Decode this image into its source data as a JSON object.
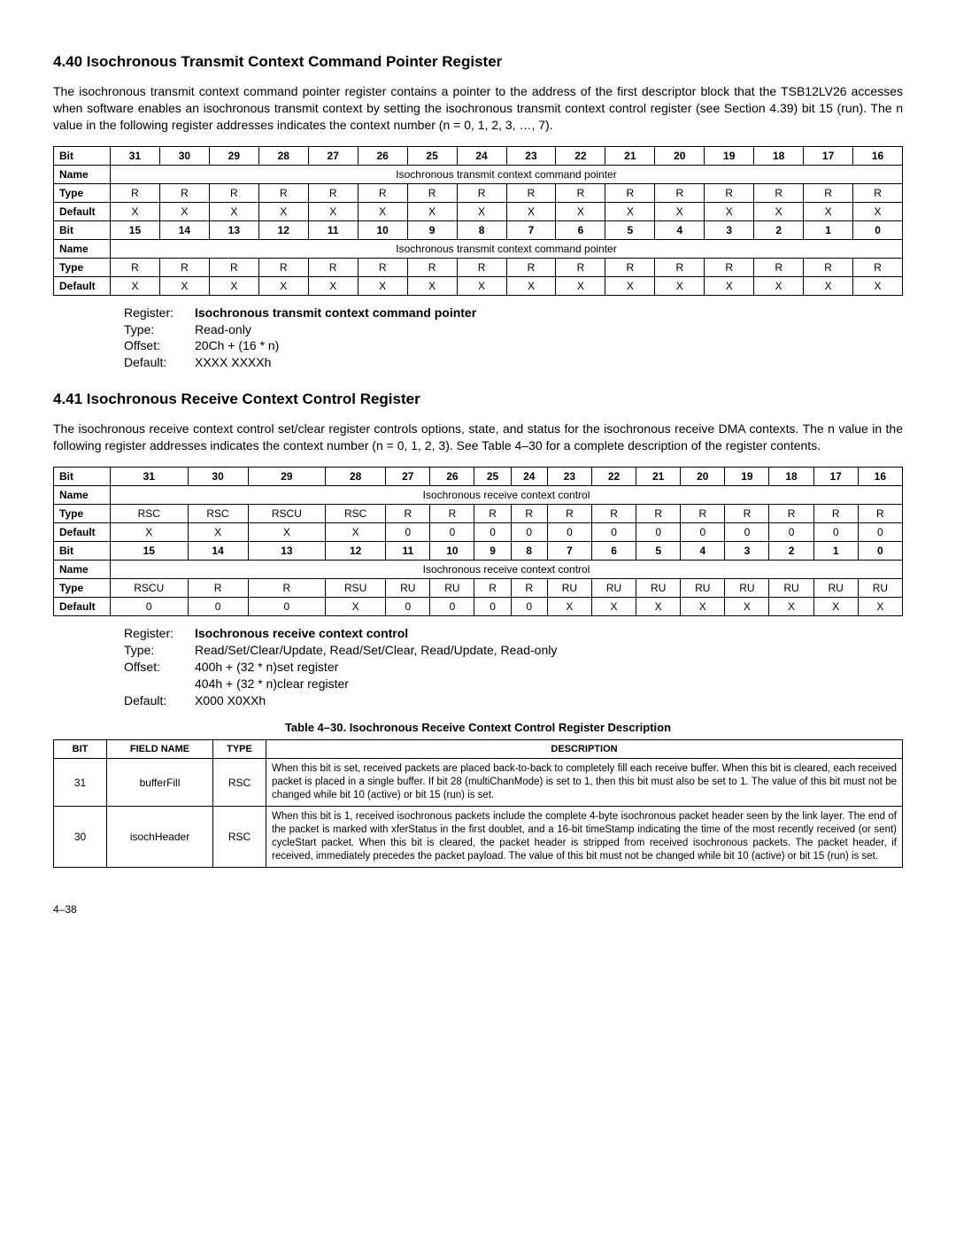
{
  "section440": {
    "heading": "4.40 Isochronous Transmit Context Command Pointer Register",
    "para": "The isochronous transmit context command pointer register contains a pointer to the address of the first descriptor block that the TSB12LV26 accesses when software enables an isochronous transmit context by setting the isochronous transmit context control register (see Section 4.39) bit 15 (run). The n value in the following register addresses indicates the context number (n = 0, 1, 2, 3, …, 7).",
    "table": {
      "rows": [
        {
          "hdr": "Bit",
          "bold": true,
          "cells": [
            "31",
            "30",
            "29",
            "28",
            "27",
            "26",
            "25",
            "24",
            "23",
            "22",
            "21",
            "20",
            "19",
            "18",
            "17",
            "16"
          ]
        },
        {
          "hdr": "Name",
          "bold": true,
          "span": "Isochronous transmit context command pointer"
        },
        {
          "hdr": "Type",
          "bold": true,
          "cells": [
            "R",
            "R",
            "R",
            "R",
            "R",
            "R",
            "R",
            "R",
            "R",
            "R",
            "R",
            "R",
            "R",
            "R",
            "R",
            "R"
          ]
        },
        {
          "hdr": "Default",
          "bold": true,
          "cells": [
            "X",
            "X",
            "X",
            "X",
            "X",
            "X",
            "X",
            "X",
            "X",
            "X",
            "X",
            "X",
            "X",
            "X",
            "X",
            "X"
          ]
        },
        {
          "hdr": "Bit",
          "bold": true,
          "cells": [
            "15",
            "14",
            "13",
            "12",
            "11",
            "10",
            "9",
            "8",
            "7",
            "6",
            "5",
            "4",
            "3",
            "2",
            "1",
            "0"
          ]
        },
        {
          "hdr": "Name",
          "bold": true,
          "span": "Isochronous transmit context command pointer"
        },
        {
          "hdr": "Type",
          "bold": true,
          "cells": [
            "R",
            "R",
            "R",
            "R",
            "R",
            "R",
            "R",
            "R",
            "R",
            "R",
            "R",
            "R",
            "R",
            "R",
            "R",
            "R"
          ]
        },
        {
          "hdr": "Default",
          "bold": true,
          "cells": [
            "X",
            "X",
            "X",
            "X",
            "X",
            "X",
            "X",
            "X",
            "X",
            "X",
            "X",
            "X",
            "X",
            "X",
            "X",
            "X"
          ]
        }
      ]
    },
    "reginfo": {
      "register": "Isochronous transmit context command pointer",
      "type": "Read-only",
      "offset": "20Ch + (16 * n)",
      "default": "XXXX XXXXh"
    }
  },
  "section441": {
    "heading": "4.41 Isochronous Receive Context Control Register",
    "para": "The isochronous receive context control set/clear register controls options, state, and status for the isochronous receive DMA contexts. The n value in the following register addresses indicates the context number (n = 0, 1, 2, 3). See Table 4–30 for a complete description of the register contents.",
    "table": {
      "rows": [
        {
          "hdr": "Bit",
          "bold": true,
          "cells": [
            "31",
            "30",
            "29",
            "28",
            "27",
            "26",
            "25",
            "24",
            "23",
            "22",
            "21",
            "20",
            "19",
            "18",
            "17",
            "16"
          ]
        },
        {
          "hdr": "Name",
          "bold": true,
          "span": "Isochronous receive context control"
        },
        {
          "hdr": "Type",
          "bold": true,
          "cells": [
            "RSC",
            "RSC",
            "RSCU",
            "RSC",
            "R",
            "R",
            "R",
            "R",
            "R",
            "R",
            "R",
            "R",
            "R",
            "R",
            "R",
            "R"
          ]
        },
        {
          "hdr": "Default",
          "bold": true,
          "cells": [
            "X",
            "X",
            "X",
            "X",
            "0",
            "0",
            "0",
            "0",
            "0",
            "0",
            "0",
            "0",
            "0",
            "0",
            "0",
            "0"
          ]
        },
        {
          "hdr": "Bit",
          "bold": true,
          "cells": [
            "15",
            "14",
            "13",
            "12",
            "11",
            "10",
            "9",
            "8",
            "7",
            "6",
            "5",
            "4",
            "3",
            "2",
            "1",
            "0"
          ]
        },
        {
          "hdr": "Name",
          "bold": true,
          "span": "Isochronous receive context control"
        },
        {
          "hdr": "Type",
          "bold": true,
          "cells": [
            "RSCU",
            "R",
            "R",
            "RSU",
            "RU",
            "RU",
            "R",
            "R",
            "RU",
            "RU",
            "RU",
            "RU",
            "RU",
            "RU",
            "RU",
            "RU"
          ]
        },
        {
          "hdr": "Default",
          "bold": true,
          "cells": [
            "0",
            "0",
            "0",
            "X",
            "0",
            "0",
            "0",
            "0",
            "X",
            "X",
            "X",
            "X",
            "X",
            "X",
            "X",
            "X"
          ]
        }
      ]
    },
    "reginfo": {
      "register": "Isochronous receive context control",
      "type": "Read/Set/Clear/Update, Read/Set/Clear, Read/Update, Read-only",
      "offset1": "400h + (32 * n)",
      "offset1lbl": "set register",
      "offset2": "404h + (32 * n)",
      "offset2lbl": "clear register",
      "default": "X000 X0XXh"
    },
    "desctable": {
      "title": "Table 4–30.  Isochronous Receive Context Control Register Description",
      "headers": [
        "BIT",
        "FIELD NAME",
        "TYPE",
        "DESCRIPTION"
      ],
      "rows": [
        {
          "bit": "31",
          "field": "bufferFill",
          "type": "RSC",
          "desc": "When this bit is set, received packets are placed back-to-back to completely fill each receive buffer. When this bit is cleared, each received packet is placed in a single buffer. If bit 28 (multiChanMode) is set to 1, then this bit must also be set to 1. The value of this bit must not be changed while bit 10 (active) or bit 15 (run) is set."
        },
        {
          "bit": "30",
          "field": "isochHeader",
          "type": "RSC",
          "desc": "When this bit is 1, received isochronous packets include the complete 4-byte isochronous packet header seen by the link layer. The end of the packet is marked with xferStatus in the first doublet, and a 16-bit timeStamp indicating the time of the most recently received (or sent) cycleStart packet. When this bit is cleared, the packet header is stripped from received isochronous packets. The packet header, if received, immediately precedes the packet payload. The value of this bit must not be changed while bit 10 (active) or bit 15 (run) is set."
        }
      ]
    }
  },
  "pagenum": "4–38"
}
